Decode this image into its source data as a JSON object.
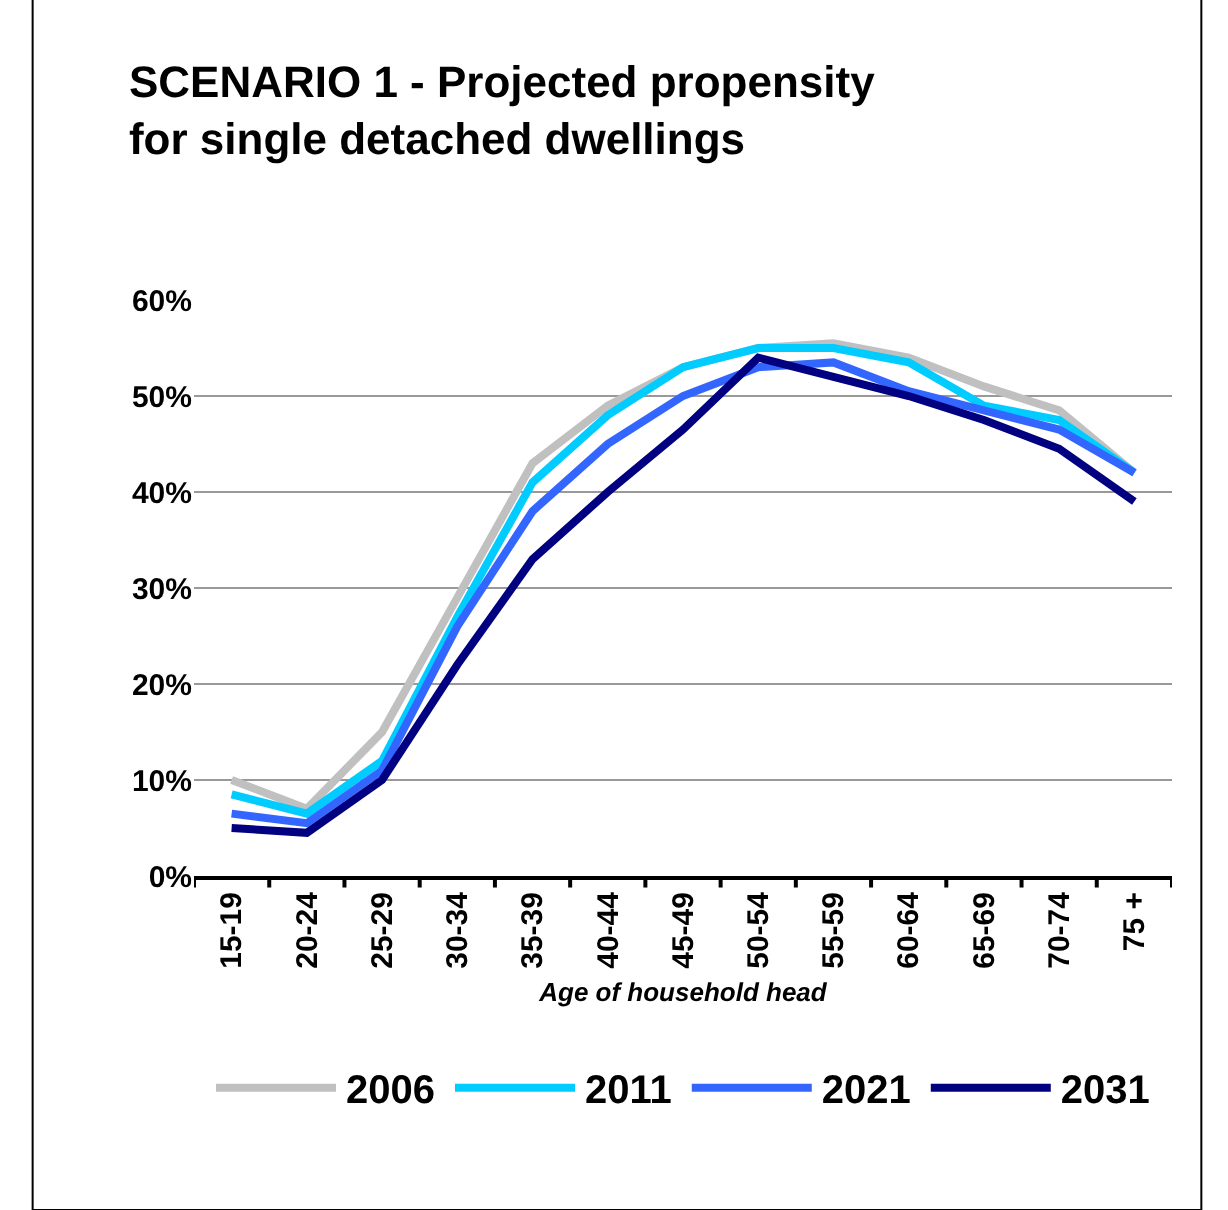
{
  "chart_data": {
    "type": "line",
    "title": "SCENARIO 1 - Projected propensity for single detached dwellings",
    "xlabel": "Age of household head",
    "categories": [
      "15-19",
      "20-24",
      "25-29",
      "30-34",
      "35-39",
      "40-44",
      "45-49",
      "50-54",
      "55-59",
      "60-64",
      "65-69",
      "70-74",
      "75 +"
    ],
    "series": [
      {
        "name": "2006",
        "color": "#c0c0c0",
        "values": [
          10,
          7,
          15,
          29,
          43,
          49,
          53,
          55,
          55.5,
          54,
          51,
          48.5,
          42
        ]
      },
      {
        "name": "2011",
        "color": "#00ccff",
        "values": [
          8.5,
          6.5,
          12,
          27,
          41,
          48,
          53,
          55,
          55,
          53.5,
          49,
          47.5,
          42
        ]
      },
      {
        "name": "2021",
        "color": "#3366ff",
        "values": [
          6.5,
          5.5,
          11,
          26,
          38,
          45,
          50,
          53,
          53.5,
          50.5,
          48.5,
          46.5,
          42
        ]
      },
      {
        "name": "2031",
        "color": "#000080",
        "values": [
          5,
          4.5,
          10,
          22,
          33,
          40,
          46.5,
          54,
          52,
          50,
          47.5,
          44.5,
          39
        ]
      }
    ],
    "ylim": [
      0,
      60
    ],
    "yticks": [
      {
        "value": 0,
        "label": "0%"
      },
      {
        "value": 10,
        "label": "10%"
      },
      {
        "value": 20,
        "label": "20%"
      },
      {
        "value": 30,
        "label": "30%"
      },
      {
        "value": 40,
        "label": "40%"
      },
      {
        "value": 50,
        "label": "50%"
      },
      {
        "value": 60,
        "label": "60%"
      }
    ],
    "grid": "y",
    "legend": "bottom",
    "marker": "none",
    "line_style": "solid"
  }
}
